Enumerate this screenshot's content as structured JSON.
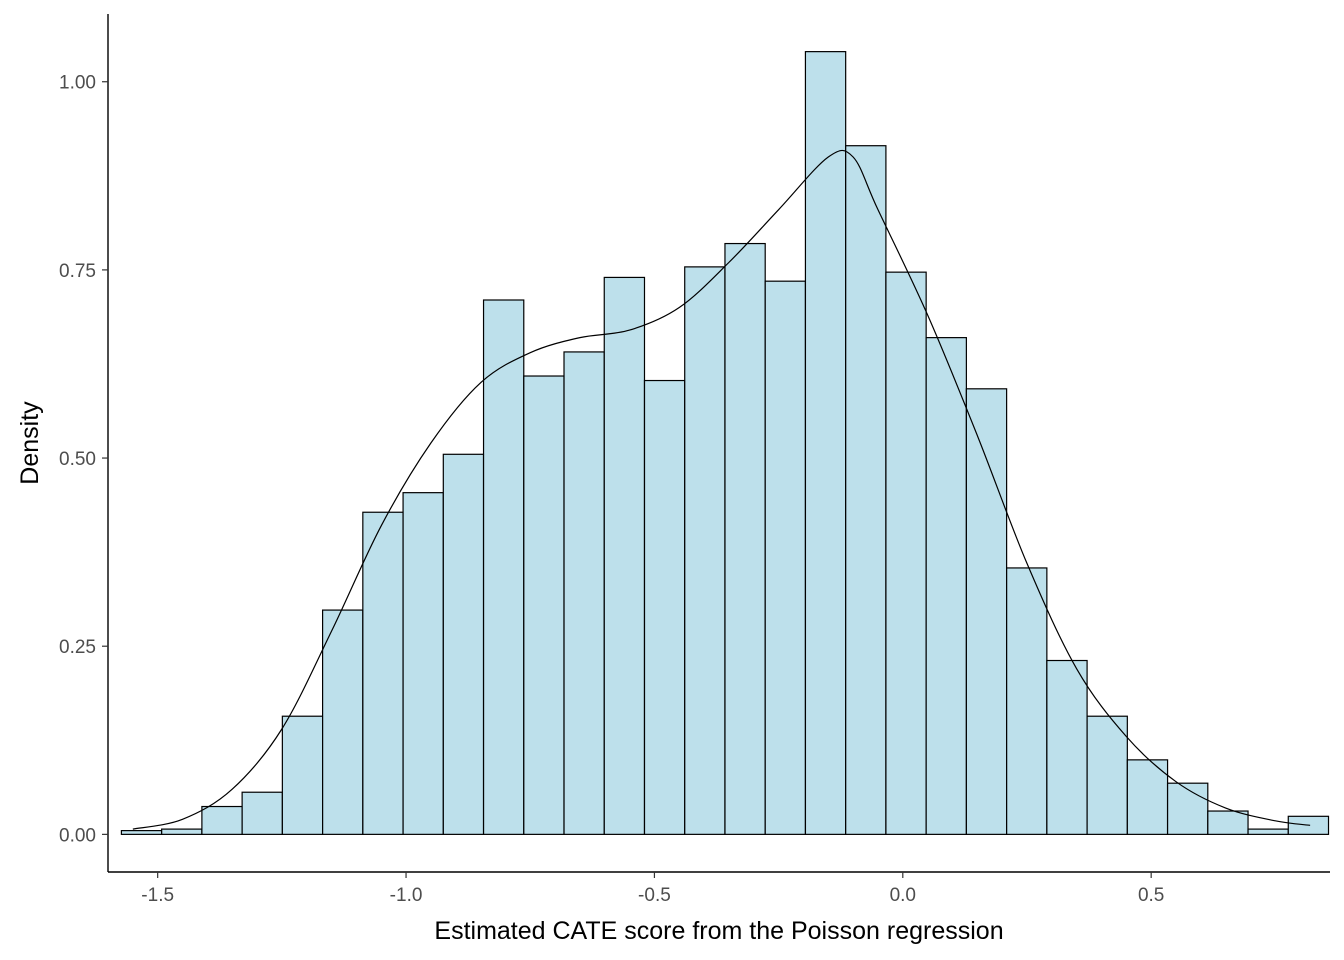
{
  "chart_data": {
    "type": "bar",
    "subtype": "histogram-with-density",
    "xlabel": "Estimated CATE score from the Poisson regression",
    "ylabel": "Density",
    "xlim": [
      -1.6,
      0.86
    ],
    "ylim": [
      -0.05,
      1.09
    ],
    "x_ticks": [
      -1.5,
      -1.0,
      -0.5,
      0.0,
      0.5
    ],
    "x_tick_labels": [
      "-1.5",
      "-1.0",
      "-0.5",
      "0.0",
      "0.5"
    ],
    "y_ticks": [
      0.0,
      0.25,
      0.5,
      0.75,
      1.0
    ],
    "y_tick_labels": [
      "0.00",
      "0.25",
      "0.50",
      "0.75",
      "1.00"
    ],
    "grid": false,
    "bin_width": 0.081,
    "bins_start": [
      -1.573,
      -1.492,
      -1.411,
      -1.33,
      -1.249,
      -1.168,
      -1.087,
      -1.006,
      -0.925,
      -0.844,
      -0.763,
      -0.682,
      -0.601,
      -0.52,
      -0.439,
      -0.358,
      -0.277,
      -0.196,
      -0.115,
      -0.034,
      0.047,
      0.128,
      0.209,
      0.29,
      0.371,
      0.452,
      0.533,
      0.614,
      0.695,
      0.776
    ],
    "values": [
      0.005,
      0.007,
      0.037,
      0.056,
      0.157,
      0.298,
      0.428,
      0.454,
      0.505,
      0.71,
      0.609,
      0.641,
      0.74,
      0.603,
      0.754,
      0.785,
      0.735,
      1.04,
      0.915,
      0.747,
      0.66,
      0.592,
      0.354,
      0.231,
      0.157,
      0.099,
      0.068,
      0.031,
      0.007,
      0.024
    ],
    "bar_fill": "#add8e6",
    "bar_stroke": "#000000",
    "density_curve": {
      "color": "#000000",
      "x": [
        -1.55,
        -1.45,
        -1.35,
        -1.25,
        -1.15,
        -1.05,
        -0.95,
        -0.85,
        -0.75,
        -0.65,
        -0.55,
        -0.45,
        -0.35,
        -0.25,
        -0.15,
        -0.1,
        -0.05,
        0.05,
        0.15,
        0.25,
        0.35,
        0.45,
        0.55,
        0.65,
        0.75,
        0.82
      ],
      "y": [
        0.007,
        0.02,
        0.06,
        0.14,
        0.27,
        0.41,
        0.52,
        0.6,
        0.64,
        0.66,
        0.67,
        0.7,
        0.76,
        0.83,
        0.9,
        0.9,
        0.83,
        0.69,
        0.53,
        0.36,
        0.22,
        0.13,
        0.07,
        0.035,
        0.018,
        0.012
      ]
    }
  }
}
